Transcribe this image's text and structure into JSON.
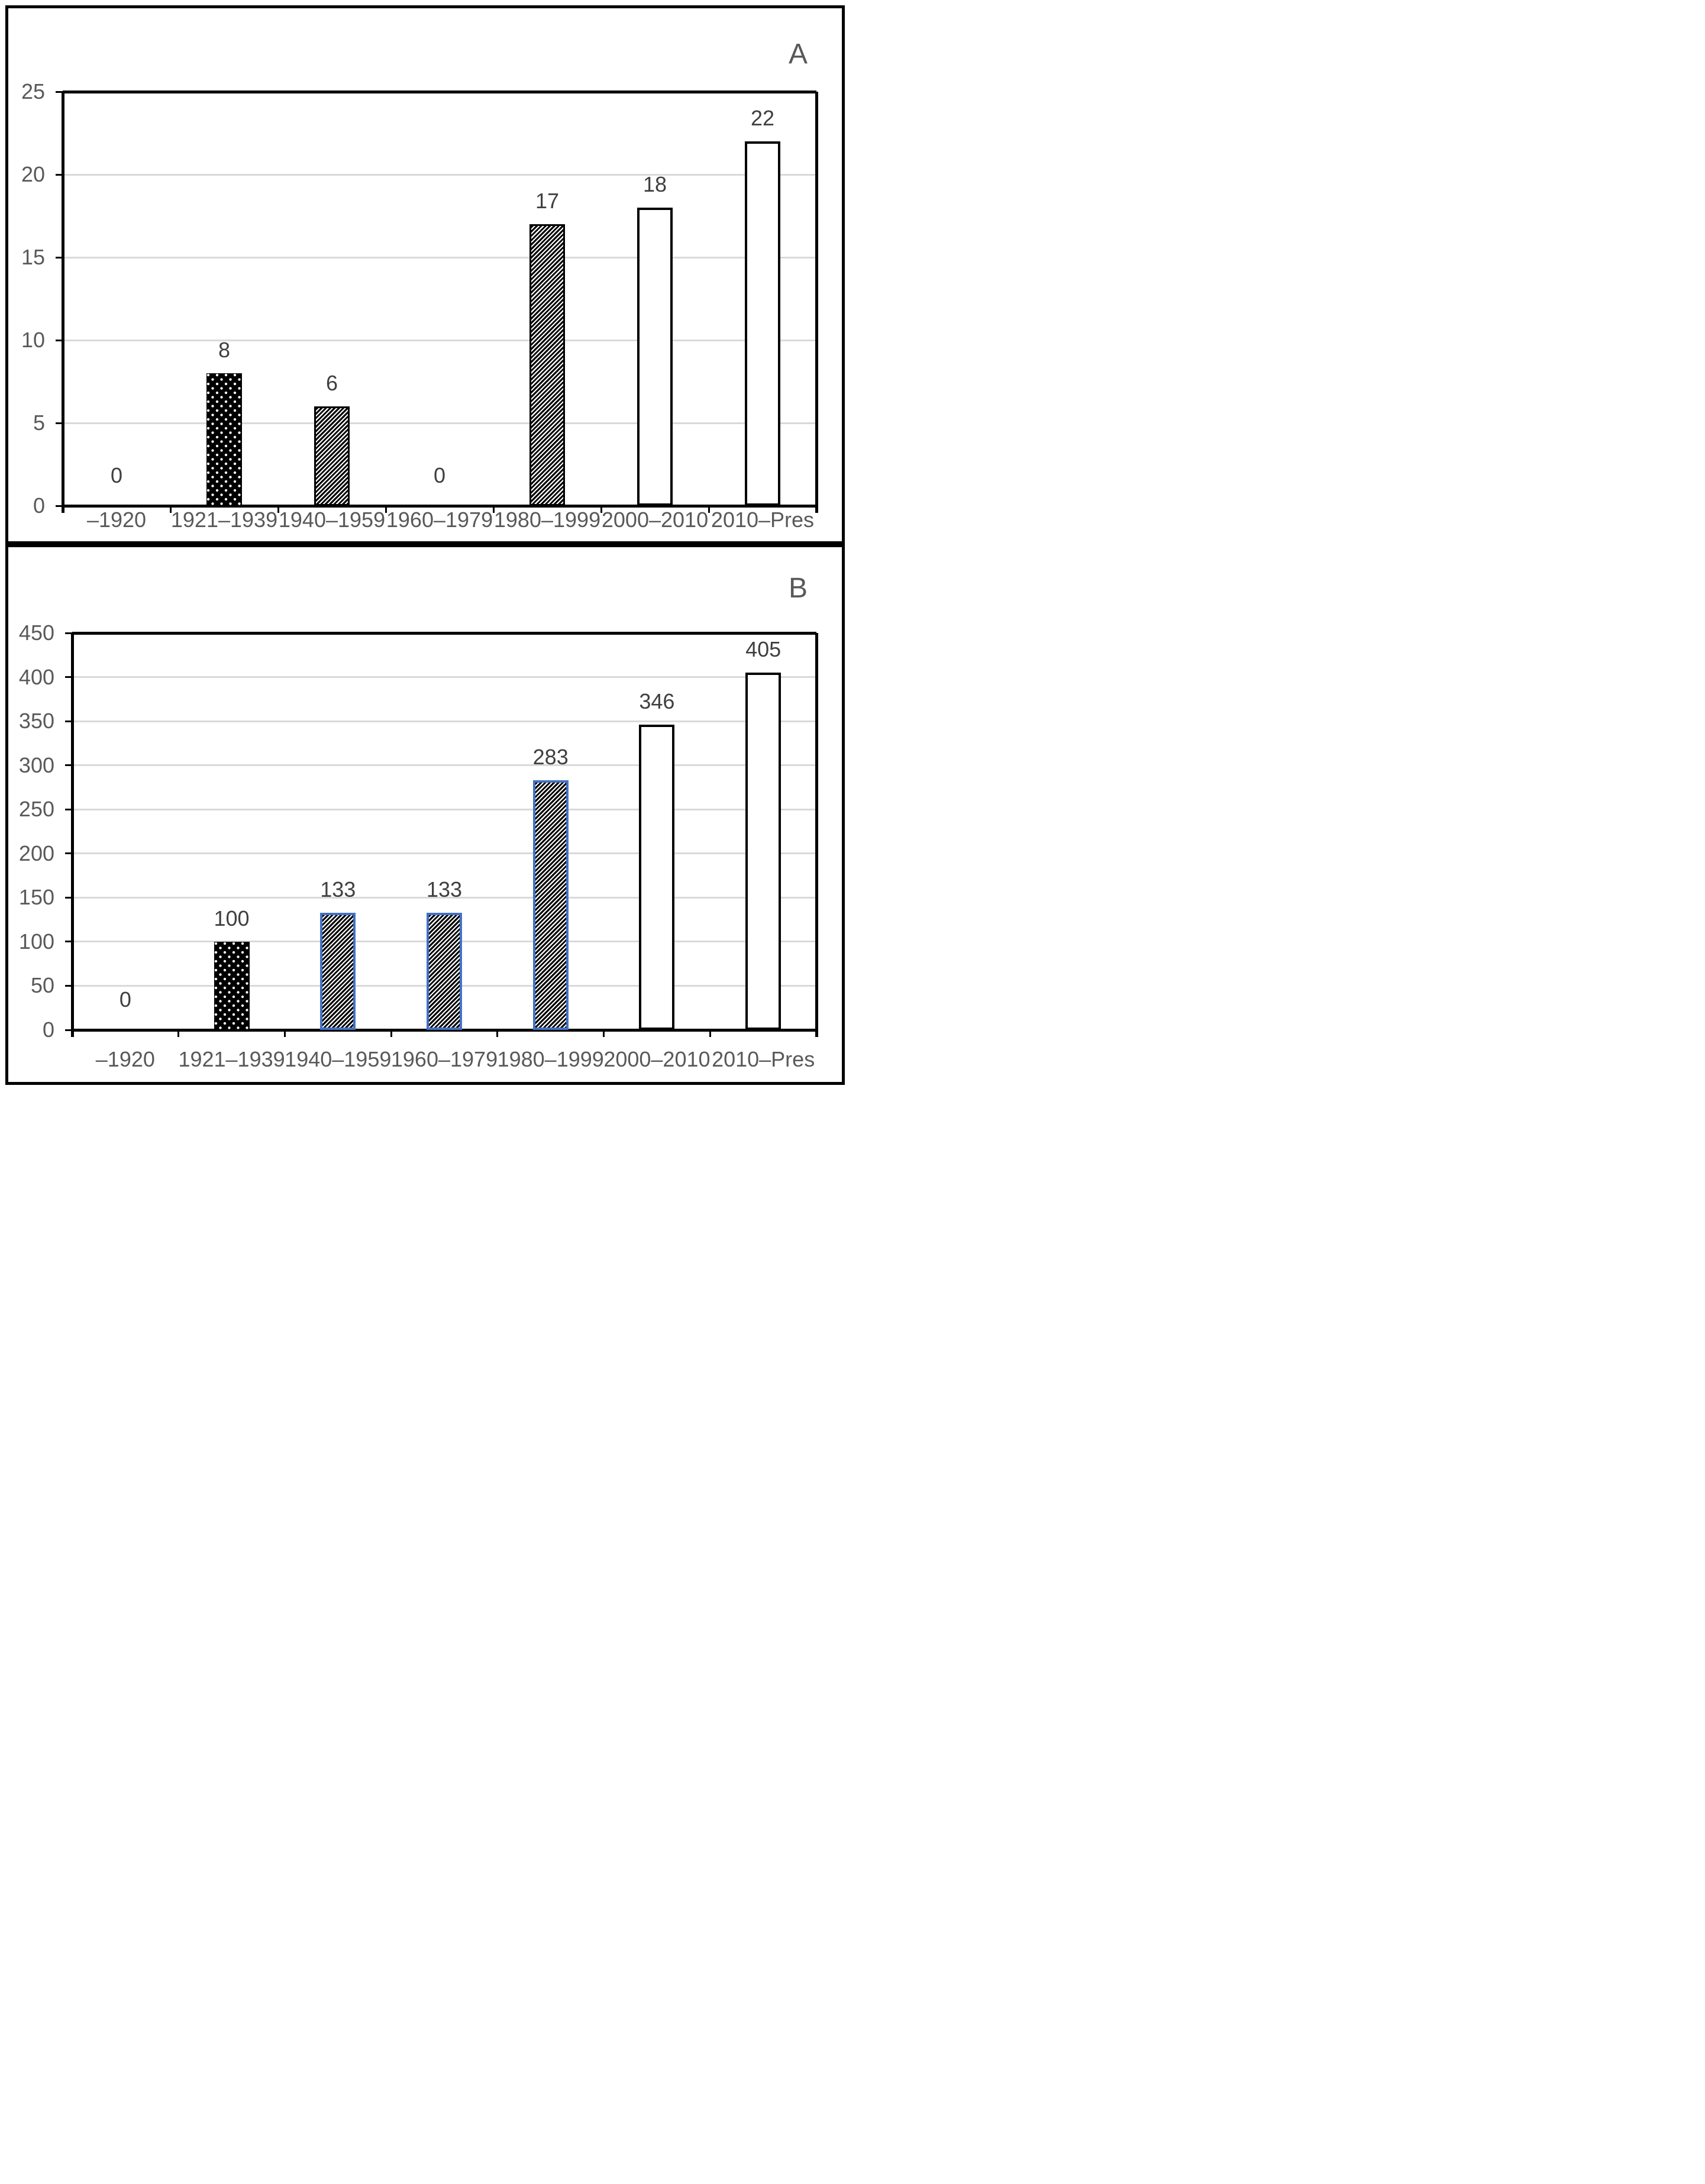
{
  "styles": {
    "background": "#FFFFFF",
    "axis_color": "#000000",
    "gridline_color": "#D9D9D9",
    "tick_label_color": "#595959",
    "value_label_color": "#3F3F3F",
    "panel_label_color": "#595959",
    "accent_blue": "#4472C4"
  },
  "chart_data": [
    {
      "type": "bar",
      "panel_label": "A",
      "title": "",
      "xlabel": "",
      "ylabel": "",
      "categories": [
        "–1920",
        "1921–1939",
        "1940–1959",
        "1960–1979",
        "1980–1999",
        "2000–2010",
        "2010–Pres"
      ],
      "values": [
        0,
        8,
        6,
        0,
        17,
        18,
        22
      ],
      "bar_styles": [
        "none",
        "black-dots",
        "black-hatch",
        "none",
        "black-hatch",
        "white-outline",
        "white-outline"
      ],
      "ylim": [
        0,
        25
      ],
      "yticks": [
        0,
        5,
        10,
        15,
        20,
        25
      ],
      "grid": true,
      "legend": "none"
    },
    {
      "type": "bar",
      "panel_label": "B",
      "title": "",
      "xlabel": "",
      "ylabel": "",
      "categories": [
        "–1920",
        "1921–1939",
        "1940–1959",
        "1960–1979",
        "1980–1999",
        "2000–2010",
        "2010–Pres"
      ],
      "values": [
        0,
        100,
        133,
        133,
        283,
        346,
        405
      ],
      "bar_styles": [
        "none",
        "black-dots",
        "blue-hatch",
        "blue-hatch",
        "blue-hatch",
        "white-outline",
        "white-outline"
      ],
      "ylim": [
        0,
        450
      ],
      "yticks": [
        0,
        50,
        100,
        150,
        200,
        250,
        300,
        350,
        400,
        450
      ],
      "grid": true,
      "legend": "none"
    }
  ]
}
